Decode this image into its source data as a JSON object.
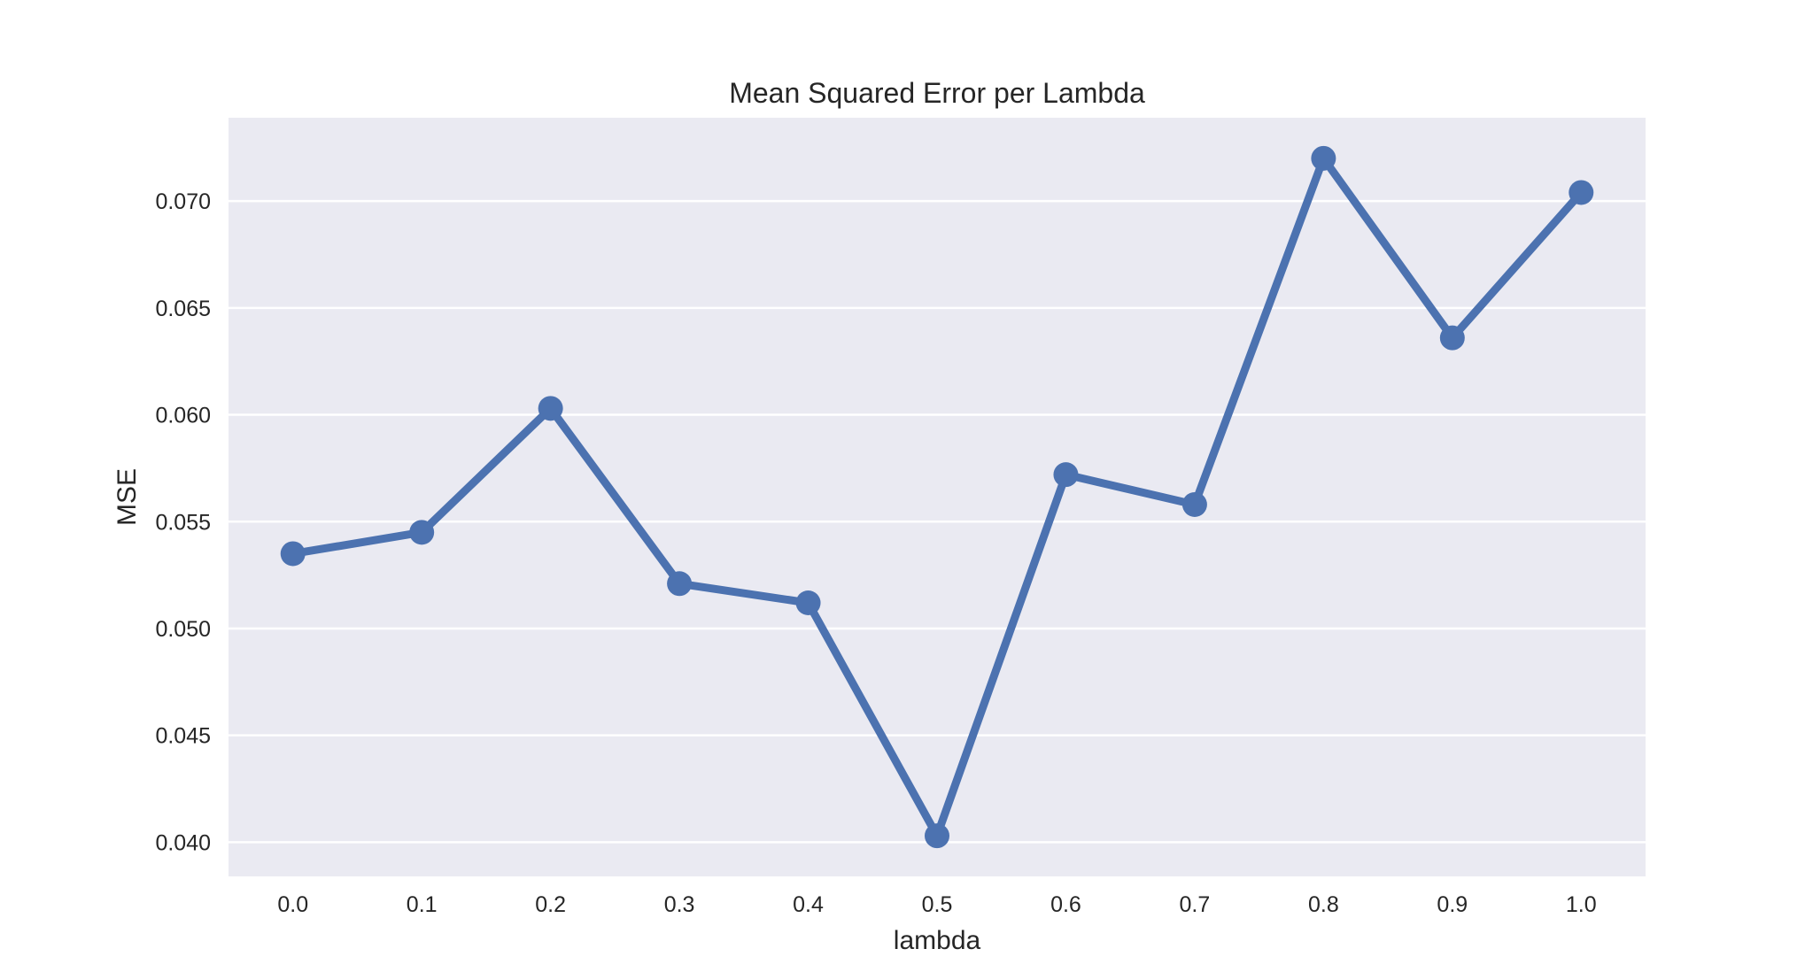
{
  "chart_data": {
    "type": "line",
    "title": "Mean Squared Error per Lambda",
    "xlabel": "lambda",
    "ylabel": "MSE",
    "categories": [
      "0.0",
      "0.1",
      "0.2",
      "0.3",
      "0.4",
      "0.5",
      "0.6",
      "0.7",
      "0.8",
      "0.9",
      "1.0"
    ],
    "series": [
      {
        "values": [
          0.0535,
          0.0545,
          0.0603,
          0.0521,
          0.0512,
          0.0403,
          0.0572,
          0.0558,
          0.072,
          0.0636,
          0.0704
        ],
        "color": "#4c72b0"
      }
    ],
    "ylim": [
      0.0384,
      0.0739
    ],
    "yticks": [
      0.04,
      0.045,
      0.05,
      0.055,
      0.06,
      0.065,
      0.07
    ],
    "ytick_labels": [
      "0.040",
      "0.045",
      "0.050",
      "0.055",
      "0.060",
      "0.065",
      "0.070"
    ],
    "grid": true,
    "grid_axis": "y",
    "plot_background": "#eaeaf2",
    "grid_color": "#ffffff",
    "text_color": "#262626"
  }
}
